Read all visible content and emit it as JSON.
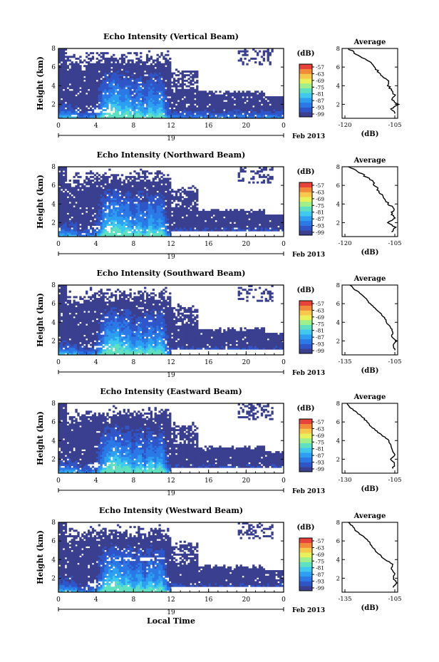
{
  "colors": {
    "background": "#ffffff",
    "colormap": [
      "#3a3f8f",
      "#2f56c9",
      "#2b79e6",
      "#2d9ff2",
      "#3fc9ee",
      "#5fe0c0",
      "#9ff08a",
      "#e8f05a",
      "#f7c84a",
      "#f28a3a",
      "#e8423a"
    ]
  },
  "chart_data": [
    {
      "type": "heatmap",
      "title": "Echo Intensity (Vertical Beam)",
      "ylabel": "Height (km)",
      "xlabel": "",
      "x_ticks": [
        "0",
        "4",
        "8",
        "12",
        "16",
        "20",
        "0"
      ],
      "y_ticks": [
        "2",
        "4",
        "6",
        "8"
      ],
      "date_label": "Feb 2013",
      "date_day": "19",
      "xlim_hours": [
        0,
        24
      ],
      "ylim_km": [
        0.5,
        8
      ],
      "colorbar": {
        "label": "(dB)",
        "ticks": [
          "-57",
          "-63",
          "-69",
          "-75",
          "-81",
          "-87",
          "-93",
          "-99"
        ],
        "range": [
          -99,
          -57
        ]
      },
      "profile": {
        "title": "Average",
        "xlabel": "(dB)",
        "x_ticks": [
          "-120",
          "-105"
        ],
        "xlim": [
          -120,
          -105
        ],
        "y_ticks": [
          "2",
          "4",
          "6",
          "8"
        ],
        "height_km": [
          1,
          1.5,
          2,
          2.5,
          3,
          3.5,
          4,
          4.5,
          5,
          5.5,
          6,
          6.5,
          7,
          7.5,
          8
        ],
        "value_db": [
          -105,
          -106,
          -104,
          -106,
          -105,
          -106,
          -107,
          -107,
          -109,
          -110,
          -111,
          -112,
          -115,
          -117,
          -119
        ]
      }
    },
    {
      "type": "heatmap",
      "title": "Echo Intensity (Northward Beam)",
      "ylabel": "Height (km)",
      "xlabel": "",
      "x_ticks": [
        "0",
        "4",
        "8",
        "12",
        "16",
        "20",
        "0"
      ],
      "y_ticks": [
        "2",
        "4",
        "6",
        "8"
      ],
      "date_label": "Feb 2013",
      "date_day": "19",
      "xlim_hours": [
        0,
        24
      ],
      "ylim_km": [
        0.5,
        8
      ],
      "colorbar": {
        "label": "(dB)",
        "ticks": [
          "-57",
          "-63",
          "-69",
          "-75",
          "-81",
          "-87",
          "-93",
          "-99"
        ],
        "range": [
          -99,
          -57
        ]
      },
      "profile": {
        "title": "Average",
        "xlabel": "(dB)",
        "x_ticks": [
          "-120",
          "-105"
        ],
        "xlim": [
          -120,
          -105
        ],
        "y_ticks": [
          "2",
          "4",
          "6",
          "8"
        ],
        "height_km": [
          1,
          1.5,
          2,
          2.5,
          3,
          3.5,
          4,
          4.5,
          5,
          5.5,
          6,
          6.5,
          7,
          7.5,
          8
        ],
        "value_db": [
          -106,
          -105,
          -107,
          -105,
          -106,
          -105,
          -107,
          -108,
          -109,
          -110,
          -111,
          -112,
          -114,
          -116,
          -119
        ]
      }
    },
    {
      "type": "heatmap",
      "title": "Echo Intensity (Southward Beam)",
      "ylabel": "Height (km)",
      "xlabel": "",
      "x_ticks": [
        "0",
        "4",
        "8",
        "12",
        "16",
        "20",
        "0"
      ],
      "y_ticks": [
        "2",
        "4",
        "6",
        "8"
      ],
      "date_label": "Feb 2013",
      "date_day": "19",
      "xlim_hours": [
        0,
        24
      ],
      "ylim_km": [
        0.5,
        8
      ],
      "colorbar": {
        "label": "(dB)",
        "ticks": [
          "-57",
          "-63",
          "-69",
          "-75",
          "-81",
          "-87",
          "-93",
          "-99"
        ],
        "range": [
          -99,
          -57
        ]
      },
      "profile": {
        "title": "Average",
        "xlabel": "(dB)",
        "x_ticks": [
          "-135",
          "-105"
        ],
        "xlim": [
          -135,
          -105
        ],
        "y_ticks": [
          "2",
          "4",
          "6",
          "8"
        ],
        "height_km": [
          1,
          1.5,
          2,
          2.5,
          3,
          3.5,
          4,
          4.5,
          5,
          5.5,
          6,
          6.5,
          7,
          7.5,
          8
        ],
        "value_db": [
          -105,
          -106,
          -104,
          -107,
          -106,
          -108,
          -110,
          -111,
          -114,
          -117,
          -120,
          -122,
          -125,
          -129,
          -132
        ]
      }
    },
    {
      "type": "heatmap",
      "title": "Echo Intensity (Eastward Beam)",
      "ylabel": "Height (km)",
      "xlabel": "",
      "x_ticks": [
        "0",
        "4",
        "8",
        "12",
        "16",
        "20",
        "0"
      ],
      "y_ticks": [
        "2",
        "4",
        "6",
        "8"
      ],
      "date_label": "Feb 2013",
      "date_day": "19",
      "xlim_hours": [
        0,
        24
      ],
      "ylim_km": [
        0.5,
        8
      ],
      "colorbar": {
        "label": "(dB)",
        "ticks": [
          "-57",
          "-63",
          "-69",
          "-75",
          "-81",
          "-87",
          "-93",
          "-99"
        ],
        "range": [
          -99,
          -57
        ]
      },
      "profile": {
        "title": "Average",
        "xlabel": "(dB)",
        "x_ticks": [
          "-130",
          "-105"
        ],
        "xlim": [
          -130,
          -105
        ],
        "y_ticks": [
          "2",
          "4",
          "6",
          "8"
        ],
        "height_km": [
          1,
          1.5,
          2,
          2.5,
          3,
          3.5,
          4,
          4.5,
          5,
          5.5,
          6,
          6.5,
          7,
          7.5,
          8
        ],
        "value_db": [
          -106,
          -105,
          -107,
          -105,
          -106,
          -107,
          -108,
          -111,
          -114,
          -117,
          -119,
          -121,
          -124,
          -127,
          -129
        ]
      }
    },
    {
      "type": "heatmap",
      "title": "Echo Intensity (Westward Beam)",
      "ylabel": "Height (km)",
      "xlabel": "Local Time",
      "x_ticks": [
        "0",
        "4",
        "8",
        "12",
        "16",
        "20",
        "0"
      ],
      "y_ticks": [
        "2",
        "4",
        "6",
        "8"
      ],
      "date_label": "Feb 2013",
      "date_day": "19",
      "xlim_hours": [
        0,
        24
      ],
      "ylim_km": [
        0.5,
        8
      ],
      "colorbar": {
        "label": "(dB)",
        "ticks": [
          "-57",
          "-63",
          "-69",
          "-75",
          "-81",
          "-87",
          "-93",
          "-99"
        ],
        "range": [
          -99,
          -57
        ]
      },
      "profile": {
        "title": "Average",
        "xlabel": "(dB)",
        "x_ticks": [
          "-135",
          "-105"
        ],
        "xlim": [
          -135,
          -105
        ],
        "y_ticks": [
          "2",
          "4",
          "6",
          "8"
        ],
        "height_km": [
          1,
          1.5,
          2,
          2.5,
          3,
          3.5,
          4,
          4.5,
          5,
          5.5,
          6,
          6.5,
          7,
          7.5,
          8
        ],
        "value_db": [
          -106,
          -104,
          -106,
          -105,
          -107,
          -106,
          -111,
          -114,
          -117,
          -119,
          -121,
          -124,
          -128,
          -130,
          -133
        ]
      }
    }
  ]
}
